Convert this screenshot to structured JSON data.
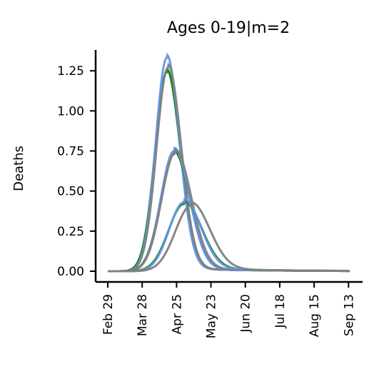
{
  "chart_data": {
    "type": "line",
    "title": "Ages 0-19|m=2",
    "xlabel": "",
    "ylabel": "Deaths",
    "x_ticks": [
      "Feb 29",
      "Mar 28",
      "Apr 25",
      "May 23",
      "Jun 20",
      "Jul 18",
      "Aug 15",
      "Sep 13"
    ],
    "x_start": "2020-02-29",
    "x_end": "2020-09-13",
    "ylim": [
      -0.05,
      1.38
    ],
    "y_ticks": [
      "0.00",
      "0.25",
      "0.50",
      "0.75",
      "1.00",
      "1.25"
    ],
    "grid": false,
    "series": [
      {
        "color": "#008000",
        "peak_date": "2020-04-17",
        "peak": 1.24,
        "width_days": 9.5
      },
      {
        "color": "#6495ED",
        "peak_date": "2020-04-17",
        "peak": 1.33,
        "width_days": 9.0
      },
      {
        "color": "#808080",
        "peak_date": "2020-04-18",
        "peak": 1.27,
        "width_days": 9.3
      },
      {
        "color": "#008000",
        "peak_date": "2020-04-23",
        "peak": 0.73,
        "width_days": 11.0
      },
      {
        "color": "#6495ED",
        "peak_date": "2020-04-23",
        "peak": 0.75,
        "width_days": 10.8
      },
      {
        "color": "#808080",
        "peak_date": "2020-04-24",
        "peak": 0.74,
        "width_days": 11.2
      },
      {
        "color": "#008000",
        "peak_date": "2020-05-01",
        "peak": 0.42,
        "width_days": 12.5
      },
      {
        "color": "#6495ED",
        "peak_date": "2020-05-01",
        "peak": 0.43,
        "width_days": 12.0
      },
      {
        "color": "#808080",
        "peak_date": "2020-05-07",
        "peak": 0.41,
        "width_days": 13.0
      }
    ]
  }
}
